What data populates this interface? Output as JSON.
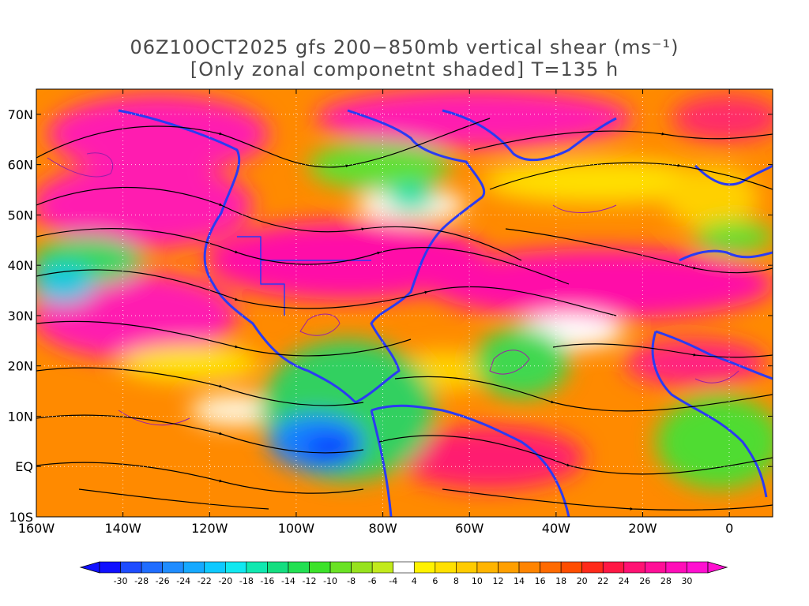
{
  "title": {
    "line1": "06Z10OCT2025 gfs 200−850mb vertical shear (ms⁻¹)",
    "line2": "[Only zonal componetnt shaded] T=135 h"
  },
  "map": {
    "lon_range": [
      -160,
      10
    ],
    "lat_range": [
      -10,
      75
    ],
    "projection": "cylindrical",
    "coastline_color": "#2b3bf2",
    "contour_color": "#9a1fa6",
    "streamline_color": "#000000",
    "grid": "dotted",
    "x_ticks": [
      {
        "lon": -160,
        "label": "160W"
      },
      {
        "lon": -140,
        "label": "140W"
      },
      {
        "lon": -120,
        "label": "120W"
      },
      {
        "lon": -100,
        "label": "100W"
      },
      {
        "lon": -80,
        "label": "80W"
      },
      {
        "lon": -60,
        "label": "60W"
      },
      {
        "lon": -40,
        "label": "40W"
      },
      {
        "lon": -20,
        "label": "20W"
      },
      {
        "lon": 0,
        "label": "0"
      }
    ],
    "y_ticks": [
      {
        "lat": 70,
        "label": "70N"
      },
      {
        "lat": 60,
        "label": "60N"
      },
      {
        "lat": 50,
        "label": "50N"
      },
      {
        "lat": 40,
        "label": "40N"
      },
      {
        "lat": 30,
        "label": "30N"
      },
      {
        "lat": 20,
        "label": "20N"
      },
      {
        "lat": 10,
        "label": "10N"
      },
      {
        "lat": 0,
        "label": "EQ"
      },
      {
        "lat": -10,
        "label": "10S"
      }
    ]
  },
  "colorbar": {
    "labels": [
      "-30",
      "-28",
      "-26",
      "-24",
      "-22",
      "-20",
      "-18",
      "-16",
      "-14",
      "-12",
      "-10",
      "-8",
      "-6",
      "-4",
      "4",
      "6",
      "8",
      "10",
      "12",
      "14",
      "16",
      "18",
      "20",
      "22",
      "24",
      "26",
      "28",
      "30"
    ],
    "colors": [
      "#1010ff",
      "#1e4cff",
      "#1f6dff",
      "#1f8cff",
      "#16a9ff",
      "#0ec9ff",
      "#11e8f0",
      "#10e8b0",
      "#14de80",
      "#22e052",
      "#3ce22a",
      "#6ae224",
      "#97e21d",
      "#c2ea1c",
      "#ffffff",
      "#fff200",
      "#ffe000",
      "#ffcb00",
      "#ffb400",
      "#ff9f00",
      "#ff8400",
      "#ff6a00",
      "#ff4d00",
      "#ff2a1a",
      "#ff1844",
      "#ff1273",
      "#ff0f97",
      "#ff0db8",
      "#ff0fd0"
    ],
    "under_color": "#1010ff",
    "over_color": "#ff0fd0"
  }
}
